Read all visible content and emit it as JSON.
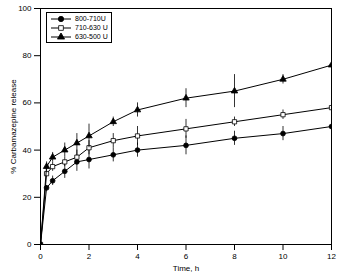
{
  "chart_data": {
    "type": "line",
    "x_label": "Time, h",
    "y_label": "% Carbamazepine release",
    "x": [
      0,
      0.25,
      0.5,
      1,
      1.5,
      2,
      3,
      4,
      6,
      8,
      10,
      12
    ],
    "series": [
      {
        "name": "800-710U",
        "color": "#000000",
        "marker": "circle",
        "values": [
          0,
          24,
          27,
          31,
          35,
          36,
          38,
          40,
          42,
          45,
          47,
          50
        ],
        "errors": [
          0,
          1,
          2,
          3,
          4,
          4,
          3,
          3,
          4,
          3,
          3,
          3
        ]
      },
      {
        "name": "710-630 U",
        "color": "#000000",
        "marker": "square-open",
        "values": [
          0,
          30,
          33,
          35,
          37,
          41,
          44,
          46,
          49,
          52,
          55,
          58
        ],
        "errors": [
          0,
          1,
          2,
          2,
          3,
          3,
          3,
          4,
          4,
          2,
          2,
          2
        ]
      },
      {
        "name": "630-500 U",
        "color": "#000000",
        "marker": "triangle",
        "values": [
          0,
          33,
          37,
          40,
          43,
          46,
          52,
          57,
          62,
          65,
          70,
          76
        ],
        "errors": [
          0,
          2,
          2,
          3,
          4,
          5,
          2,
          3,
          4,
          7,
          2,
          1
        ]
      }
    ],
    "xlim": [
      0,
      12
    ],
    "xticks": [
      0,
      2,
      4,
      6,
      8,
      10,
      12
    ],
    "ylim": [
      0,
      100
    ],
    "yticks": [
      0,
      20,
      40,
      60,
      80,
      100
    ],
    "legend": "upper left",
    "grid": false
  }
}
